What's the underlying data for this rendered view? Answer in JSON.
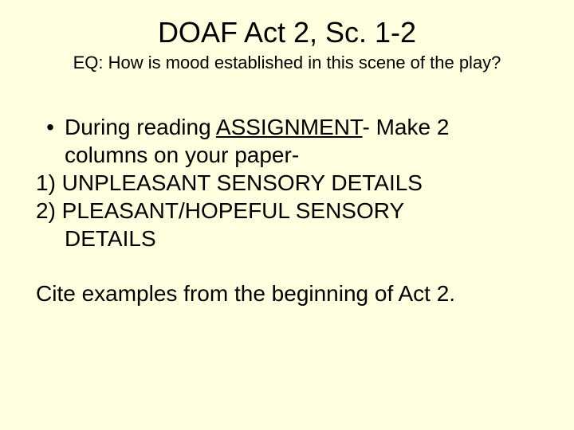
{
  "slide": {
    "title": "DOAF Act 2, Sc. 1-2",
    "subtitle": "EQ: How is mood established in this scene of the play?",
    "bullet_prefix": "During reading ",
    "bullet_underlined": "ASSIGNMENT",
    "bullet_suffix": "- Make 2",
    "bullet_line2": "columns on your paper-",
    "item1": "1) UNPLEASANT SENSORY DETAILS",
    "item2_line1": "2) PLEASANT/HOPEFUL SENSORY",
    "item2_line2": "DETAILS",
    "closing": "Cite examples from the beginning of Act 2.",
    "bullet_char": "•"
  },
  "style": {
    "background_color": "#ffffe0",
    "text_color": "#000000",
    "title_fontsize": 36,
    "subtitle_fontsize": 22,
    "body_fontsize": 28,
    "font_family": "Arial"
  }
}
